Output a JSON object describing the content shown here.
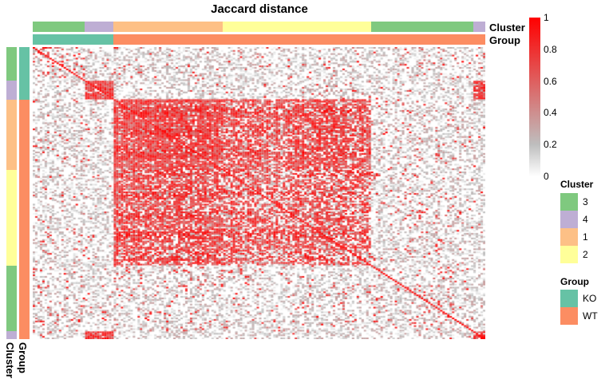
{
  "chart_data": {
    "type": "heatmap",
    "title": "Jaccard distance",
    "value_range": [
      0,
      1
    ],
    "color_scale": {
      "ticks": [
        "0",
        "0.2",
        "0.4",
        "0.6",
        "0.8",
        "1"
      ],
      "tick_values": [
        0,
        0.2,
        0.4,
        0.6,
        0.8,
        1
      ],
      "low_color": "#ffffff",
      "mid_color": "#bebebe",
      "high_color": "#ff0000"
    },
    "clusters_order": [
      "3",
      "4",
      "1",
      "2",
      "3",
      "4"
    ],
    "cluster_block_fractions": [
      0.114,
      0.065,
      0.241,
      0.328,
      0.226,
      0.026
    ],
    "group_block_fractions": [
      0.179,
      0.821
    ],
    "group_order": [
      "KO",
      "WT"
    ],
    "annotation_tracks": {
      "top": [
        "Cluster",
        "Group"
      ],
      "left": [
        "Group",
        "Cluster"
      ]
    },
    "legends": {
      "cluster": {
        "title": "Cluster",
        "items": [
          {
            "label": "3",
            "color": "#7fc97f"
          },
          {
            "label": "4",
            "color": "#beaed4"
          },
          {
            "label": "1",
            "color": "#fdc086"
          },
          {
            "label": "2",
            "color": "#ffff99"
          }
        ]
      },
      "group": {
        "title": "Group",
        "items": [
          {
            "label": "KO",
            "color": "#66c2a5"
          },
          {
            "label": "WT",
            "color": "#fc8d62"
          }
        ]
      }
    },
    "block_mean_similarity": [
      [
        0.15,
        0.02,
        0.03,
        0.03,
        0.04,
        0.05
      ],
      [
        0.02,
        0.95,
        0.02,
        0.02,
        0.02,
        0.95
      ],
      [
        0.03,
        0.02,
        0.92,
        0.7,
        0.05,
        0.02
      ],
      [
        0.03,
        0.02,
        0.7,
        0.55,
        0.04,
        0.02
      ],
      [
        0.04,
        0.02,
        0.05,
        0.04,
        0.06,
        0.02
      ],
      [
        0.05,
        0.95,
        0.02,
        0.02,
        0.02,
        0.95
      ]
    ]
  }
}
